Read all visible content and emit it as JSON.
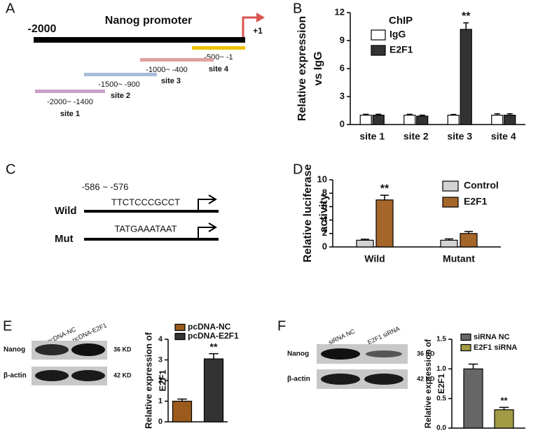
{
  "panel_labels": [
    "A",
    "B",
    "C",
    "D",
    "E",
    "F"
  ],
  "promoter_diagram": {
    "title": "Nanog promoter",
    "start": "-2000",
    "end": "+1",
    "sites": [
      {
        "range": "-2000~ -1400",
        "name": "site 1"
      },
      {
        "range": "-1500~ -900",
        "name": "site 2"
      },
      {
        "range": "-1000~ -400",
        "name": "site 3"
      },
      {
        "range": "-500~ -1",
        "name": "site 4"
      }
    ]
  },
  "sequence_diagram": {
    "position": "-586 ~ -576",
    "rows": [
      {
        "label": "Wild",
        "sequence": "TTCTCCCGCCT"
      },
      {
        "label": "Mut",
        "sequence": "TATGAAATAAT"
      }
    ]
  },
  "blots": [
    {
      "columns": [
        "pcDNA-NC",
        "pcDNA-E2F1"
      ],
      "rows": [
        "Nanog",
        "β-actin"
      ],
      "sizes": [
        "36 KD",
        "42 KD"
      ]
    },
    {
      "columns": [
        "siRNA NC",
        "E2F1 siRNA"
      ],
      "rows": [
        "Nanog",
        "β-actin"
      ],
      "sizes": [
        "36 KD",
        "42 KD"
      ]
    }
  ],
  "chart_data": [
    {
      "type": "bar",
      "ylabel": [
        "Relative expression",
        "vs IgG"
      ],
      "categories": [
        "site 1",
        "site 2",
        "site 3",
        "site 4"
      ],
      "legend_title": "ChIP",
      "series": [
        {
          "name": "IgG",
          "color": "#ffffff",
          "values": [
            1,
            1,
            1,
            1
          ],
          "errors": [
            0.1,
            0.1,
            0.08,
            0.15
          ]
        },
        {
          "name": "E2F1",
          "color": "#333333",
          "values": [
            1,
            0.9,
            10.2,
            1
          ],
          "errors": [
            0.1,
            0.1,
            0.7,
            0.15
          ]
        }
      ],
      "ylim": [
        0,
        12
      ],
      "yticks": [
        0,
        3,
        6,
        9,
        12
      ],
      "annotations": [
        "**"
      ]
    },
    {
      "type": "bar",
      "ylabel": [
        "Relative luciferase",
        "activity"
      ],
      "categories": [
        "Wild",
        "Mutant"
      ],
      "series": [
        {
          "name": "Control",
          "color": "#d3d3d3",
          "values": [
            1,
            1
          ],
          "errors": [
            0.15,
            0.2
          ]
        },
        {
          "name": "E2F1",
          "color": "#a5662a",
          "values": [
            7,
            2
          ],
          "errors": [
            0.7,
            0.3
          ]
        }
      ],
      "ylim": [
        0,
        10
      ],
      "yticks": [
        0,
        2,
        4,
        6,
        8,
        10
      ],
      "annotations": [
        "**"
      ]
    },
    {
      "type": "bar",
      "ylabel": [
        "Relative expression of",
        "E2F1"
      ],
      "categories": [
        null
      ],
      "series": [
        {
          "name": "pcDNA-NC",
          "color": "#9a5b1c",
          "values": [
            1
          ],
          "errors": [
            0.1
          ]
        },
        {
          "name": "pcDNA-E2F1",
          "color": "#333333",
          "values": [
            3.05
          ],
          "errors": [
            0.25
          ]
        }
      ],
      "ylim": [
        0,
        4
      ],
      "yticks": [
        0,
        1,
        2,
        3,
        4
      ],
      "annotations": [
        "**"
      ]
    },
    {
      "type": "bar",
      "ylabel": [
        "Relative expression of",
        "E2F1"
      ],
      "categories": [
        null
      ],
      "series": [
        {
          "name": "siRNA NC",
          "color": "#666666",
          "values": [
            1.0
          ],
          "errors": [
            0.08
          ]
        },
        {
          "name": "E2F1 siRNA",
          "color": "#a39a45",
          "values": [
            0.31
          ],
          "errors": [
            0.04
          ]
        }
      ],
      "ylim": [
        0,
        1.5
      ],
      "yticks": [
        {
          "value": 0,
          "label": "0.0"
        },
        {
          "value": 0.5,
          "label": "0.5"
        },
        {
          "value": 1,
          "label": "1.0"
        },
        {
          "value": 1.5,
          "label": "1.5"
        }
      ],
      "annotations": [
        "**"
      ]
    }
  ]
}
